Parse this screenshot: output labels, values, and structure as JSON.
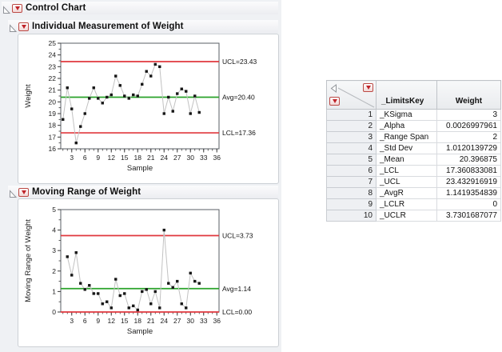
{
  "report": {
    "outline_control_chart": "Control Chart",
    "outline_individual": "Individual Measurement of Weight",
    "outline_moving_range": "Moving Range of Weight"
  },
  "colors": {
    "limit_line": "#e0383e",
    "avg_line": "#2aa22a",
    "series_line": "#c2c2c2",
    "marker": "#161616",
    "plot_border": "#5a5f66",
    "tick": "#3a3a3a"
  },
  "chart_data": [
    {
      "type": "line",
      "title": "Individual Measurement of Weight",
      "xlabel": "Sample",
      "ylabel": "Weight",
      "xlim": [
        0.5,
        36.5
      ],
      "ylim": [
        16,
        25
      ],
      "yticks": [
        16,
        17,
        18,
        19,
        20,
        21,
        22,
        23,
        24,
        25
      ],
      "xticks": [
        3,
        6,
        9,
        12,
        15,
        18,
        21,
        24,
        27,
        30,
        33,
        36
      ],
      "grid": false,
      "legend": "none",
      "marker": "square",
      "x": [
        1,
        2,
        3,
        4,
        5,
        6,
        7,
        8,
        9,
        10,
        11,
        12,
        13,
        14,
        15,
        16,
        17,
        18,
        19,
        20,
        21,
        22,
        23,
        24,
        25,
        26,
        27,
        28,
        29,
        30,
        31,
        32
      ],
      "values": [
        18.5,
        21.2,
        19.4,
        16.5,
        17.9,
        19.0,
        20.3,
        21.2,
        20.3,
        19.9,
        20.4,
        20.6,
        22.2,
        21.4,
        20.5,
        20.3,
        20.6,
        20.5,
        21.5,
        22.6,
        22.2,
        23.2,
        23.0,
        19.0,
        20.4,
        19.2,
        20.7,
        21.1,
        20.9,
        19.0,
        20.5,
        19.1
      ],
      "ref_lines": [
        {
          "label": "UCL=23.43",
          "value": 23.432916919,
          "role": "ucl"
        },
        {
          "label": "Avg=20.40",
          "value": 20.396875,
          "role": "avg"
        },
        {
          "label": "LCL=17.36",
          "value": 17.360833081,
          "role": "lcl"
        }
      ]
    },
    {
      "type": "line",
      "title": "Moving Range of Weight",
      "xlabel": "Sample",
      "ylabel": "Moving Range of Weight",
      "xlim": [
        0.5,
        36.5
      ],
      "ylim": [
        0,
        5
      ],
      "yticks": [
        0,
        1,
        2,
        3,
        4,
        5
      ],
      "xticks": [
        3,
        6,
        9,
        12,
        15,
        18,
        21,
        24,
        27,
        30,
        33,
        36
      ],
      "grid": false,
      "legend": "none",
      "marker": "square",
      "x": [
        2,
        3,
        4,
        5,
        6,
        7,
        8,
        9,
        10,
        11,
        12,
        13,
        14,
        15,
        16,
        17,
        18,
        19,
        20,
        21,
        22,
        23,
        24,
        25,
        26,
        27,
        28,
        29,
        30,
        31,
        32
      ],
      "values": [
        2.7,
        1.8,
        2.9,
        1.4,
        1.1,
        1.3,
        0.9,
        0.9,
        0.4,
        0.5,
        0.2,
        1.6,
        0.8,
        0.9,
        0.2,
        0.3,
        0.1,
        1.0,
        1.1,
        0.4,
        1.0,
        0.2,
        4.0,
        1.4,
        1.2,
        1.5,
        0.4,
        0.2,
        1.9,
        1.5,
        1.4
      ],
      "ref_lines": [
        {
          "label": "UCL=3.73",
          "value": 3.7301687077,
          "role": "ucl"
        },
        {
          "label": "Avg=1.14",
          "value": 1.1419354839,
          "role": "avg"
        },
        {
          "label": "LCL=0.00",
          "value": 0,
          "role": "lcl"
        }
      ]
    }
  ],
  "table": {
    "columns": [
      "_LimitsKey",
      "Weight"
    ],
    "rows": [
      {
        "n": "1",
        "key": "_KSigma",
        "weight": "3"
      },
      {
        "n": "2",
        "key": "_Alpha",
        "weight": "0.0026997961"
      },
      {
        "n": "3",
        "key": "_Range Span",
        "weight": "2"
      },
      {
        "n": "4",
        "key": "_Std Dev",
        "weight": "1.0120139729"
      },
      {
        "n": "5",
        "key": "_Mean",
        "weight": "20.396875"
      },
      {
        "n": "6",
        "key": "_LCL",
        "weight": "17.360833081"
      },
      {
        "n": "7",
        "key": "_UCL",
        "weight": "23.432916919"
      },
      {
        "n": "8",
        "key": "_AvgR",
        "weight": "1.1419354839"
      },
      {
        "n": "9",
        "key": "_LCLR",
        "weight": "0"
      },
      {
        "n": "10",
        "key": "_UCLR",
        "weight": "3.7301687077"
      }
    ]
  }
}
